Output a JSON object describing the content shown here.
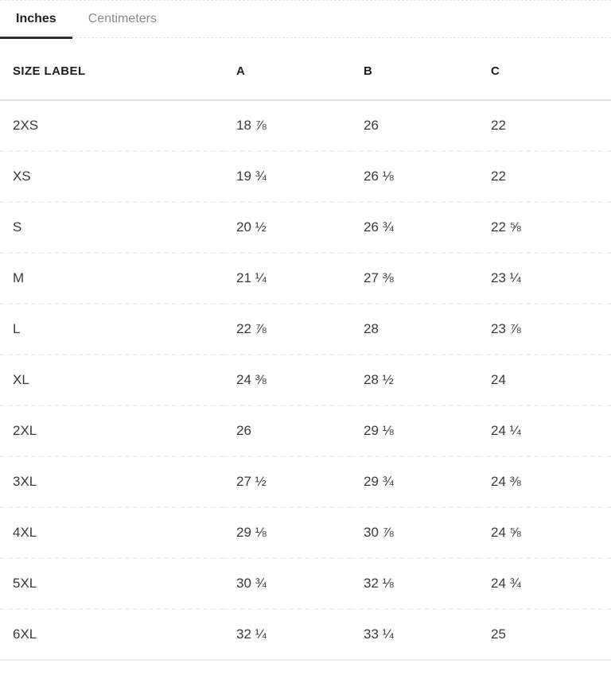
{
  "tabs": {
    "inches": {
      "label": "Inches",
      "active": true
    },
    "centimeters": {
      "label": "Centimeters",
      "active": false
    }
  },
  "table": {
    "columns": {
      "size": "SIZE LABEL",
      "a": "A",
      "b": "B",
      "c": "C"
    },
    "rows": [
      {
        "size": "2XS",
        "a": "18 ⅞",
        "b": "26",
        "c": "22"
      },
      {
        "size": "XS",
        "a": "19 ¾",
        "b": "26 ⅛",
        "c": "22"
      },
      {
        "size": "S",
        "a": "20 ½",
        "b": "26 ¾",
        "c": "22 ⅝"
      },
      {
        "size": "M",
        "a": "21 ¼",
        "b": "27 ⅜",
        "c": "23 ¼"
      },
      {
        "size": "L",
        "a": "22 ⅞",
        "b": "28",
        "c": "23 ⅞"
      },
      {
        "size": "XL",
        "a": "24 ⅜",
        "b": "28 ½",
        "c": "24"
      },
      {
        "size": "2XL",
        "a": "26",
        "b": "29 ⅛",
        "c": "24 ¼"
      },
      {
        "size": "3XL",
        "a": "27 ½",
        "b": "29 ¾",
        "c": "24 ⅜"
      },
      {
        "size": "4XL",
        "a": "29 ⅛",
        "b": "30 ⅞",
        "c": "24 ⅝"
      },
      {
        "size": "5XL",
        "a": "30 ¾",
        "b": "32 ⅛",
        "c": "24 ¾"
      },
      {
        "size": "6XL",
        "a": "32 ¼",
        "b": "33 ¼",
        "c": "25"
      }
    ]
  },
  "colors": {
    "active_tab_underline": "#2f2f2f",
    "inactive_tab_text": "#8a8a8a",
    "body_text": "#3a3a3a",
    "header_divider": "#e4e4e4",
    "row_divider": "#f0f0f0"
  }
}
